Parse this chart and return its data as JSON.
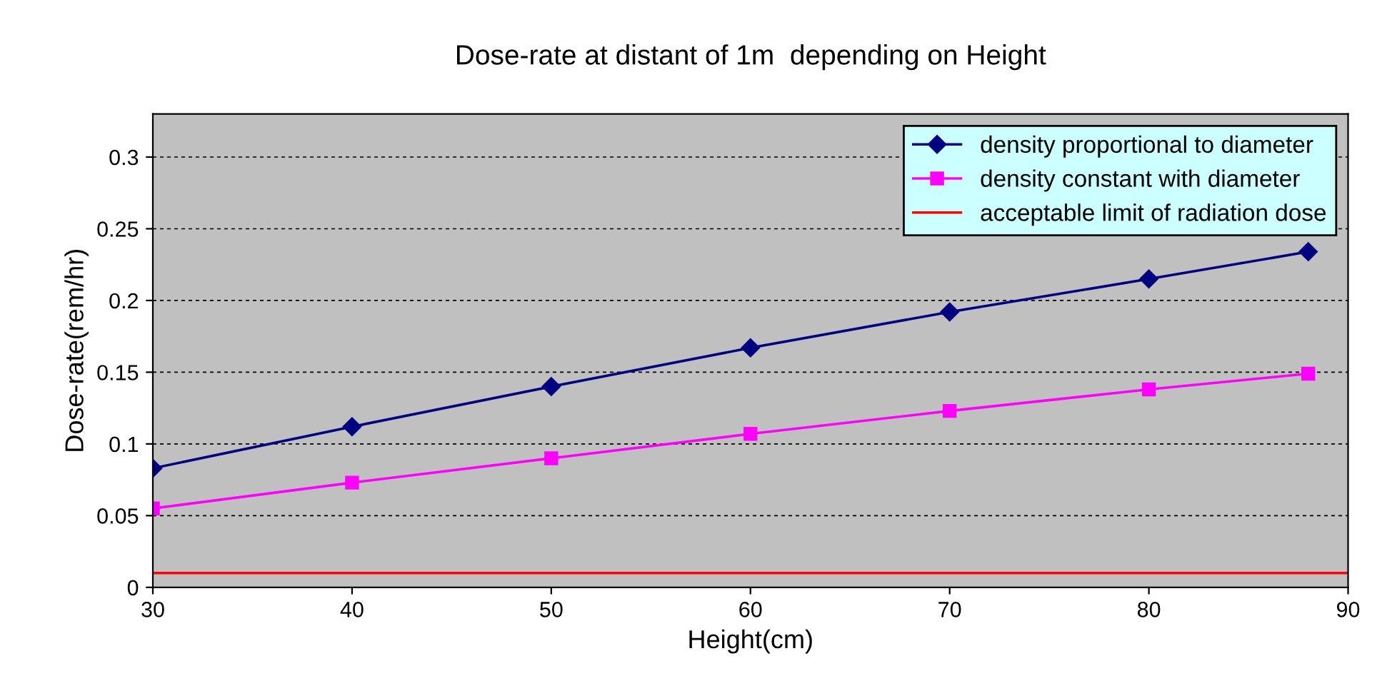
{
  "chart_data": {
    "type": "line",
    "title": "Dose-rate at distant of 1m  depending on Height",
    "xlabel": "Height(cm)",
    "ylabel": "Dose-rate(rem/hr)",
    "x": [
      30,
      40,
      50,
      60,
      70,
      80,
      88
    ],
    "series": [
      {
        "name": "density proportional to diameter",
        "color": "#000080",
        "marker": "diamond",
        "values": [
          0.083,
          0.112,
          0.14,
          0.167,
          0.192,
          0.215,
          0.234
        ]
      },
      {
        "name": "density constant with diameter",
        "color": "#ff00ff",
        "marker": "square",
        "values": [
          0.055,
          0.073,
          0.09,
          0.107,
          0.123,
          0.138,
          0.149
        ]
      },
      {
        "name": "acceptable limit of radiation dose",
        "color": "#ff0000",
        "marker": "none",
        "x": [
          30,
          90
        ],
        "values": [
          0.01,
          0.01
        ]
      }
    ],
    "xlim": [
      30,
      90
    ],
    "xticks": [
      30,
      40,
      50,
      60,
      70,
      80,
      90
    ],
    "ylim": [
      0,
      0.33
    ],
    "yticks": [
      0,
      0.05,
      0.1,
      0.15,
      0.2,
      0.25,
      0.3
    ],
    "grid": "y",
    "legend": "top right",
    "line_style": "solid"
  }
}
